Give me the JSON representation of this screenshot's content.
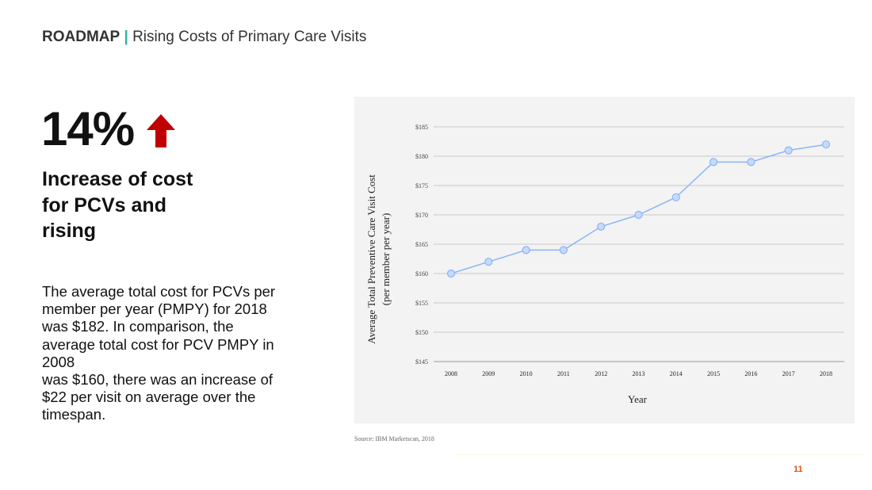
{
  "header": {
    "section": "ROADMAP",
    "separator": "|",
    "title": "Rising Costs of Primary Care Visits"
  },
  "stat": {
    "value": "14%",
    "arrow_color": "#c00000",
    "arrow_icon": "arrow-up-icon"
  },
  "subtitle": [
    "Increase of cost",
    "for PCVs and",
    "rising"
  ],
  "body_lines": [
    "The average total cost for PCVs per",
    "member per year (PMPY) for 2018",
    "was $182. In comparison, the",
    "average total cost for PCV PMPY in",
    "2008",
    "was $160, there was an increase of",
    "$22 per visit on average over the",
    "timespan."
  ],
  "source": "Source: IBM Marketscan, 2018",
  "page_number": "11",
  "chart_data": {
    "type": "line",
    "x": [
      "2008",
      "2009",
      "2010",
      "2011",
      "2012",
      "2013",
      "2014",
      "2015",
      "2016",
      "2017",
      "2018"
    ],
    "series": [
      {
        "values": [
          160,
          162,
          164,
          164,
          168,
          170,
          173,
          179,
          179,
          181,
          182
        ]
      }
    ],
    "ylim": [
      145,
      185
    ],
    "yticks": [
      "$145",
      "$150",
      "$155",
      "$160",
      "$165",
      "$170",
      "$175",
      "$180",
      "$185"
    ],
    "xlabel": "Year",
    "ylabel": [
      "Average Total Preventive Care Visit Cost",
      "(per member per year)"
    ],
    "grid": true,
    "line_color": "#8ab4f8",
    "marker_fill": "#c6dafc"
  }
}
